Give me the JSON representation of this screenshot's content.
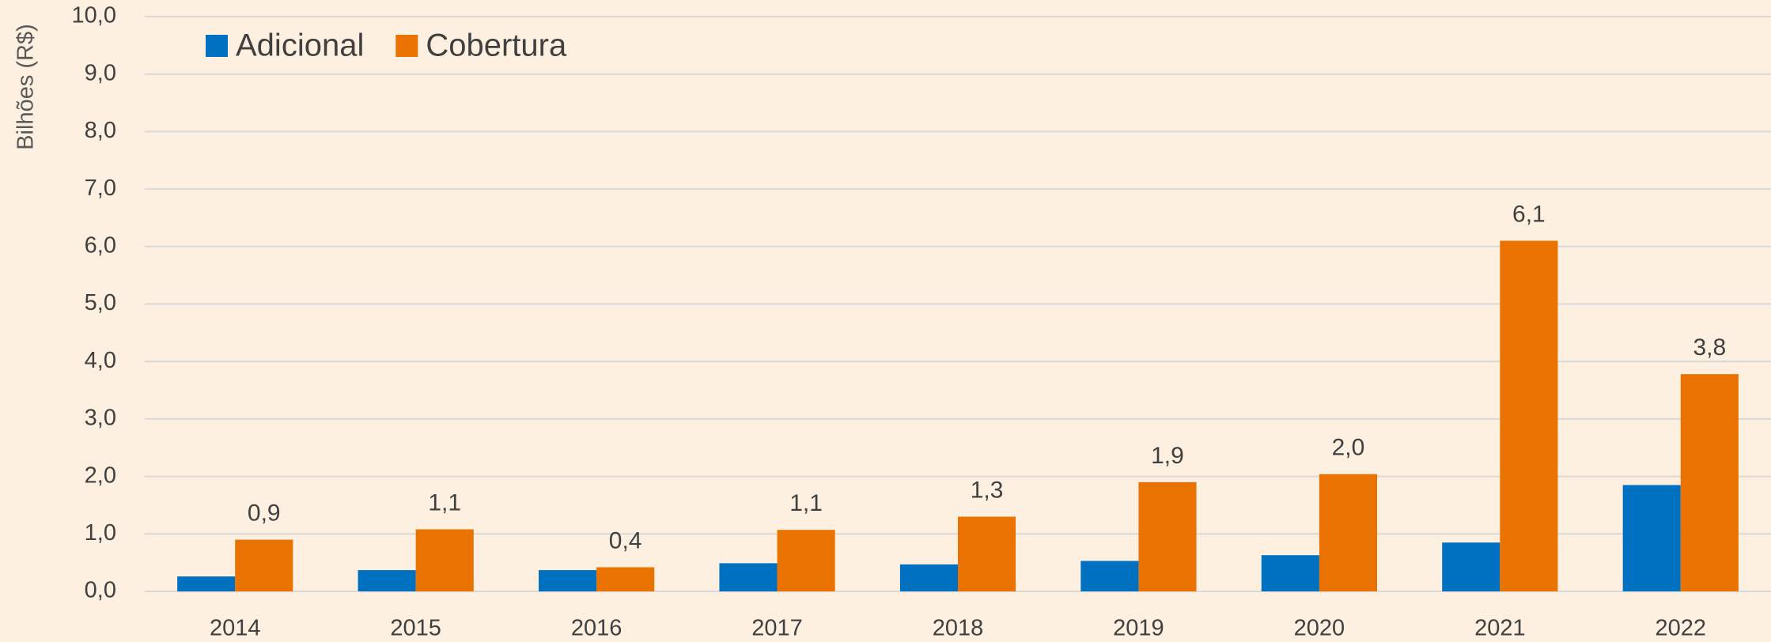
{
  "chart_data": {
    "type": "bar",
    "y_axis_label": "Bilhões (R$)",
    "categories": [
      "2014",
      "2015",
      "2016",
      "2017",
      "2018",
      "2019",
      "2020",
      "2021",
      "2022"
    ],
    "series": [
      {
        "name": "Adicional",
        "color": "#0070c0",
        "values": [
          0.26,
          0.37,
          0.37,
          0.49,
          0.47,
          0.53,
          0.63,
          0.85,
          1.85
        ]
      },
      {
        "name": "Cobertura",
        "color": "#e97200",
        "values": [
          0.9,
          1.08,
          0.42,
          1.07,
          1.3,
          1.9,
          2.04,
          6.1,
          3.78
        ],
        "value_labels": [
          "0,9",
          "1,1",
          "0,4",
          "1,1",
          "1,3",
          "1,9",
          "2,0",
          "6,1",
          "3,8"
        ]
      }
    ],
    "ylim": [
      0,
      10
    ],
    "yticks": [
      {
        "value": 0,
        "label": "0,0"
      },
      {
        "value": 1,
        "label": "1,0"
      },
      {
        "value": 2,
        "label": "2,0"
      },
      {
        "value": 3,
        "label": "3,0"
      },
      {
        "value": 4,
        "label": "4,0"
      },
      {
        "value": 5,
        "label": "5,0"
      },
      {
        "value": 6,
        "label": "6,0"
      },
      {
        "value": 7,
        "label": "7,0"
      },
      {
        "value": 8,
        "label": "8,0"
      },
      {
        "value": 9,
        "label": "9,0"
      },
      {
        "value": 10,
        "label": "10,0"
      }
    ],
    "grid": true,
    "legend": "top-left"
  }
}
